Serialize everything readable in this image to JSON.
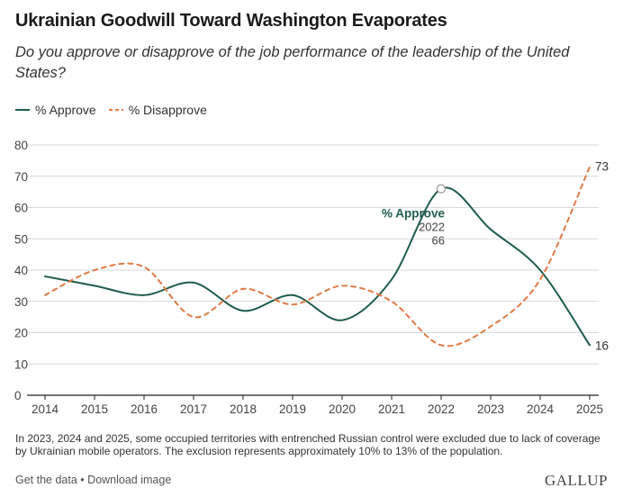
{
  "header": {
    "title": "Ukrainian Goodwill Toward Washington Evaporates",
    "subtitle": "Do you approve or disapprove of the job performance of the leadership of the United States?"
  },
  "legend": {
    "approve_label": "% Approve",
    "disapprove_label": "% Disapprove"
  },
  "colors": {
    "approve": "#1f5c4f",
    "disapprove": "#e07a45",
    "grid": "#d9d9d9",
    "axis": "#222222"
  },
  "chart_data": {
    "type": "line",
    "x": [
      2014,
      2015,
      2016,
      2017,
      2018,
      2019,
      2020,
      2021,
      2022,
      2023,
      2024,
      2025
    ],
    "series": [
      {
        "name": "% Approve",
        "style": "solid",
        "values": [
          38,
          35,
          32,
          36,
          27,
          32,
          24,
          37,
          66,
          53,
          40,
          16
        ]
      },
      {
        "name": "% Disapprove",
        "style": "dashed",
        "values": [
          32,
          40,
          41,
          25,
          34,
          29,
          35,
          30,
          16,
          22,
          37,
          73
        ]
      }
    ],
    "ylim": [
      0,
      80
    ],
    "yticks": [
      0,
      10,
      20,
      30,
      40,
      50,
      60,
      70,
      80
    ],
    "grid": true,
    "legend_position": "top-left",
    "annotations": [
      {
        "series": "% Approve",
        "x": 2022,
        "label": "% Approve",
        "year": "2022",
        "value": "66"
      }
    ],
    "end_labels": {
      "approve": "16",
      "disapprove": "73"
    }
  },
  "footer": {
    "note": "In 2023, 2024 and 2025, some occupied territories with entrenched Russian control were excluded due to lack of coverage by Ukrainian mobile operators. The exclusion represents approximately 10% to 13% of the population.",
    "get_data": "Get the data",
    "separator": "•",
    "download": "Download image",
    "brand": "GALLUP"
  }
}
